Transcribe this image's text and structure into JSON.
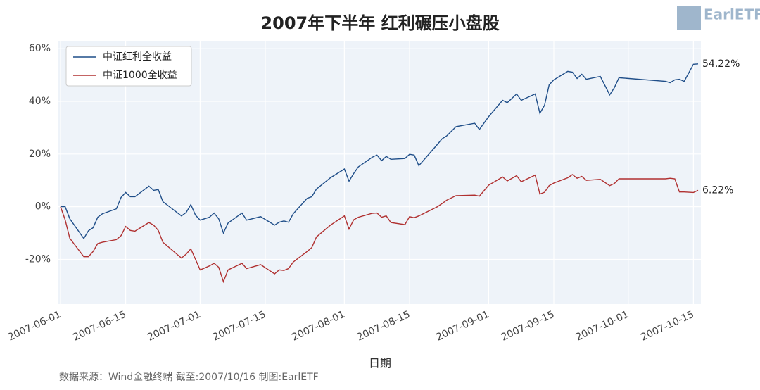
{
  "chart_data": {
    "type": "line",
    "title": "2007年下半年 红利碾压小盘股",
    "x_label": "日期",
    "source": "数据来源：Wind金融终端 截至:2007/10/16 制图:EarlETF",
    "logo": "EarlETF",
    "x": [
      "2007-06-01",
      "2007-06-02",
      "2007-06-03",
      "2007-06-06",
      "2007-06-07",
      "2007-06-08",
      "2007-06-09",
      "2007-06-10",
      "2007-06-13",
      "2007-06-14",
      "2007-06-15",
      "2007-06-16",
      "2007-06-17",
      "2007-06-20",
      "2007-06-21",
      "2007-06-22",
      "2007-06-23",
      "2007-06-27",
      "2007-06-28",
      "2007-06-29",
      "2007-06-30",
      "2007-07-01",
      "2007-07-03",
      "2007-07-04",
      "2007-07-05",
      "2007-07-06",
      "2007-07-07",
      "2007-07-10",
      "2007-07-11",
      "2007-07-14",
      "2007-07-17",
      "2007-07-18",
      "2007-07-19",
      "2007-07-20",
      "2007-07-21",
      "2007-07-24",
      "2007-07-25",
      "2007-07-26",
      "2007-07-29",
      "2007-08-01",
      "2007-08-02",
      "2007-08-03",
      "2007-08-04",
      "2007-08-07",
      "2007-08-08",
      "2007-08-09",
      "2007-08-10",
      "2007-08-11",
      "2007-08-14",
      "2007-08-15",
      "2007-08-16",
      "2007-08-17",
      "2007-08-21",
      "2007-08-22",
      "2007-08-23",
      "2007-08-25",
      "2007-08-29",
      "2007-08-30",
      "2007-09-01",
      "2007-09-04",
      "2007-09-05",
      "2007-09-07",
      "2007-09-08",
      "2007-09-11",
      "2007-09-12",
      "2007-09-13",
      "2007-09-14",
      "2007-09-15",
      "2007-09-18",
      "2007-09-19",
      "2007-09-20",
      "2007-09-21",
      "2007-09-22",
      "2007-09-25",
      "2007-09-27",
      "2007-09-28",
      "2007-09-29",
      "2007-10-09",
      "2007-10-10",
      "2007-10-11",
      "2007-10-12",
      "2007-10-13",
      "2007-10-15",
      "2007-10-16"
    ],
    "series": [
      {
        "name": "中证红利全收益",
        "color": "#1f4e89",
        "end_label": "54.22%",
        "values": [
          0,
          0,
          -4.6,
          -12.1,
          -9.1,
          -8,
          -4,
          -2.7,
          -0.8,
          3.5,
          5.4,
          3.8,
          3.8,
          7.8,
          6.2,
          6.5,
          1.9,
          -3.5,
          -2.2,
          0.8,
          -3.2,
          -5.1,
          -4,
          -2.4,
          -4.6,
          -10,
          -6.2,
          -2.4,
          -5.1,
          -3.8,
          -7,
          -5.9,
          -5.4,
          -5.9,
          -2.7,
          3.2,
          3.8,
          6.7,
          11,
          14.3,
          9.7,
          12.6,
          15.1,
          18.8,
          19.6,
          17.5,
          19.1,
          18,
          18.3,
          19.9,
          19.6,
          15.6,
          23.7,
          25.8,
          26.9,
          30.4,
          31.7,
          29.3,
          34.2,
          40.4,
          39.5,
          42.8,
          40.4,
          42.8,
          35.5,
          38.5,
          46.3,
          48.2,
          51.4,
          51.1,
          48.7,
          50.3,
          48.4,
          49.5,
          42.5,
          45.2,
          49,
          47.6,
          47.1,
          48.2,
          48.4,
          47.6,
          54.1,
          54.22
        ]
      },
      {
        "name": "中证1000全收益",
        "color": "#b03030",
        "end_label": "6.22%",
        "values": [
          0,
          -5,
          -12,
          -19,
          -19,
          -17,
          -14,
          -13.5,
          -12.5,
          -11,
          -7.5,
          -9,
          -9.3,
          -6,
          -7,
          -9,
          -13.5,
          -19.5,
          -18,
          -16,
          -20,
          -24,
          -22.5,
          -21.5,
          -23,
          -28.5,
          -24,
          -21.5,
          -23.5,
          -22,
          -25.5,
          -24,
          -24.2,
          -23.5,
          -21,
          -17,
          -15.5,
          -11.5,
          -7,
          -3.5,
          -8.5,
          -5,
          -4,
          -2.5,
          -2.4,
          -4,
          -3.5,
          -6,
          -6.8,
          -3.8,
          -4.2,
          -3.5,
          0,
          1.2,
          2.5,
          4.2,
          4.4,
          4,
          8.2,
          11.3,
          9.8,
          11.8,
          9.5,
          12,
          4.8,
          5.5,
          8,
          9,
          11,
          12.2,
          10.8,
          11.5,
          10,
          10.4,
          8,
          8.8,
          10.6,
          10.6,
          10.8,
          10.6,
          5.6,
          5.6,
          5.4,
          6.22
        ]
      }
    ],
    "xlim": [
      "2007-06-01",
      "2007-10-16"
    ],
    "xticks": [
      "2007-06-01",
      "2007-06-15",
      "2007-07-01",
      "2007-07-15",
      "2007-08-01",
      "2007-08-15",
      "2007-09-01",
      "2007-09-15",
      "2007-10-01",
      "2007-10-15"
    ],
    "ylim": [
      -37,
      63
    ],
    "yticks": [
      {
        "value": -20,
        "label": "-20%"
      },
      {
        "value": 0,
        "label": "0%"
      },
      {
        "value": 20,
        "label": "20%"
      },
      {
        "value": 40,
        "label": "40%"
      },
      {
        "value": 60,
        "label": "60%"
      }
    ],
    "grid": true,
    "legend": "upper left"
  }
}
